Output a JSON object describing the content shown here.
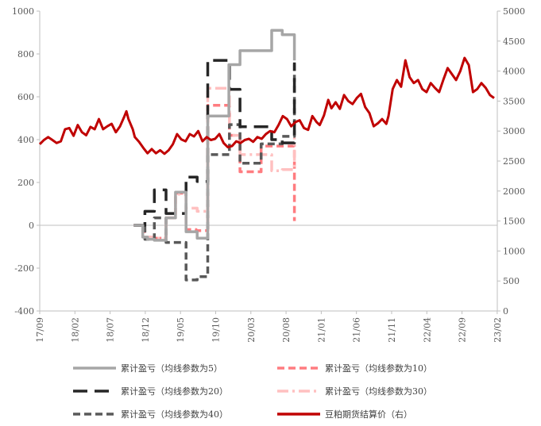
{
  "chart_data": {
    "type": "line",
    "x_ticks": [
      "17/09",
      "18/02",
      "18/07",
      "18/12",
      "19/05",
      "19/10",
      "20/03",
      "20/08",
      "21/01",
      "21/06",
      "21/11",
      "22/04",
      "22/09",
      "23/02"
    ],
    "y_left": {
      "min": -400,
      "max": 1000,
      "step": 200,
      "ticks": [
        "-400",
        "-200",
        "0",
        "200",
        "400",
        "600",
        "800",
        "1000"
      ]
    },
    "y_right": {
      "min": 0,
      "max": 5000,
      "step": 500,
      "ticks": [
        "0",
        "500",
        "1000",
        "1500",
        "2000",
        "2500",
        "3000",
        "3500",
        "4000",
        "4500",
        "5000"
      ]
    },
    "series": [
      {
        "name": "累计盈亏（均线参数为5）",
        "axis": "left",
        "color": "#a6a6a6",
        "style": "solid",
        "points": [
          [
            8.9,
            0
          ],
          [
            9.75,
            0
          ],
          [
            9.75,
            -55
          ],
          [
            10.2,
            -55
          ],
          [
            10.2,
            -65
          ],
          [
            10.85,
            -65
          ],
          [
            10.85,
            -70
          ],
          [
            11.95,
            -70
          ],
          [
            11.95,
            35
          ],
          [
            12.85,
            35
          ],
          [
            12.85,
            155
          ],
          [
            13.85,
            155
          ],
          [
            13.85,
            -30
          ],
          [
            14.9,
            -30
          ],
          [
            14.9,
            -60
          ],
          [
            15.9,
            -60
          ],
          [
            15.9,
            510
          ],
          [
            17.9,
            510
          ],
          [
            17.9,
            750
          ],
          [
            18.95,
            750
          ],
          [
            18.95,
            815
          ],
          [
            19.95,
            815
          ],
          [
            19.95,
            815
          ],
          [
            21.95,
            815
          ],
          [
            21.95,
            910
          ],
          [
            22.95,
            910
          ],
          [
            22.95,
            890
          ],
          [
            24.1,
            890
          ],
          [
            24.1,
            770
          ]
        ]
      },
      {
        "name": "累计盈亏（均线参数为10）",
        "axis": "left",
        "color": "#ff7c80",
        "style": "dash",
        "points": [
          [
            8.9,
            0
          ],
          [
            9.9,
            0
          ],
          [
            9.9,
            -55
          ],
          [
            10.85,
            -55
          ],
          [
            10.85,
            -60
          ],
          [
            11.95,
            -60
          ],
          [
            11.95,
            35
          ],
          [
            12.85,
            35
          ],
          [
            12.85,
            150
          ],
          [
            13.85,
            150
          ],
          [
            13.85,
            -20
          ],
          [
            14.8,
            -20
          ],
          [
            14.8,
            -25
          ],
          [
            15.9,
            -25
          ],
          [
            15.9,
            560
          ],
          [
            17.95,
            560
          ],
          [
            17.95,
            420
          ],
          [
            18.95,
            420
          ],
          [
            18.95,
            250
          ],
          [
            20.95,
            250
          ],
          [
            20.95,
            370
          ],
          [
            22.95,
            370
          ],
          [
            22.95,
            370
          ],
          [
            24.1,
            370
          ],
          [
            24.1,
            20
          ]
        ]
      },
      {
        "name": "累计盈亏（均线参数为20）",
        "axis": "left",
        "color": "#262626",
        "style": "longdash",
        "points": [
          [
            8.9,
            0
          ],
          [
            9.95,
            0
          ],
          [
            9.95,
            65
          ],
          [
            10.85,
            65
          ],
          [
            10.85,
            165
          ],
          [
            11.95,
            165
          ],
          [
            11.95,
            55
          ],
          [
            12.85,
            55
          ],
          [
            12.85,
            55
          ],
          [
            13.85,
            55
          ],
          [
            13.85,
            225
          ],
          [
            14.9,
            225
          ],
          [
            14.9,
            205
          ],
          [
            15.9,
            205
          ],
          [
            15.9,
            770
          ],
          [
            17.95,
            770
          ],
          [
            17.95,
            635
          ],
          [
            18.95,
            635
          ],
          [
            18.95,
            460
          ],
          [
            21.95,
            460
          ],
          [
            21.95,
            400
          ],
          [
            22.95,
            400
          ],
          [
            22.95,
            385
          ],
          [
            24.1,
            385
          ],
          [
            24.1,
            760
          ]
        ]
      },
      {
        "name": "累计盈亏（均线参数为30）",
        "axis": "left",
        "color": "#ffc0c0",
        "style": "dashdot",
        "points": [
          [
            8.9,
            0
          ],
          [
            9.95,
            0
          ],
          [
            9.95,
            -55
          ],
          [
            10.85,
            -55
          ],
          [
            10.85,
            -60
          ],
          [
            11.95,
            -60
          ],
          [
            11.95,
            35
          ],
          [
            12.85,
            35
          ],
          [
            12.85,
            145
          ],
          [
            13.85,
            145
          ],
          [
            13.85,
            80
          ],
          [
            14.9,
            80
          ],
          [
            14.9,
            65
          ],
          [
            15.9,
            65
          ],
          [
            15.9,
            640
          ],
          [
            17.95,
            640
          ],
          [
            17.95,
            420
          ],
          [
            18.95,
            420
          ],
          [
            18.95,
            330
          ],
          [
            21.95,
            330
          ],
          [
            21.95,
            255
          ],
          [
            22.95,
            255
          ],
          [
            22.95,
            260
          ],
          [
            24.1,
            260
          ],
          [
            24.1,
            410
          ]
        ]
      },
      {
        "name": "累计盈亏（均线参数为40）",
        "axis": "left",
        "color": "#595959",
        "style": "dash",
        "points": [
          [
            8.9,
            0
          ],
          [
            9.95,
            0
          ],
          [
            9.95,
            -65
          ],
          [
            10.85,
            -65
          ],
          [
            10.85,
            35
          ],
          [
            11.95,
            35
          ],
          [
            11.95,
            -80
          ],
          [
            12.85,
            -80
          ],
          [
            12.85,
            -80
          ],
          [
            13.85,
            -80
          ],
          [
            13.85,
            -255
          ],
          [
            14.9,
            -255
          ],
          [
            14.9,
            -240
          ],
          [
            15.9,
            -240
          ],
          [
            15.9,
            330
          ],
          [
            17.95,
            330
          ],
          [
            17.95,
            470
          ],
          [
            18.95,
            470
          ],
          [
            18.95,
            290
          ],
          [
            20.95,
            290
          ],
          [
            20.95,
            380
          ],
          [
            22.95,
            380
          ],
          [
            22.95,
            415
          ],
          [
            24.1,
            415
          ],
          [
            24.1,
            770
          ]
        ]
      },
      {
        "name": "豆粕期货结算价（右）",
        "axis": "right",
        "color": "#c00000",
        "style": "solid",
        "points": [
          [
            0,
            2780
          ],
          [
            0.4,
            2850
          ],
          [
            0.8,
            2900
          ],
          [
            1.2,
            2850
          ],
          [
            1.6,
            2800
          ],
          [
            2.0,
            2830
          ],
          [
            2.4,
            3030
          ],
          [
            2.8,
            3050
          ],
          [
            3.2,
            2920
          ],
          [
            3.6,
            3100
          ],
          [
            4.0,
            2980
          ],
          [
            4.4,
            2930
          ],
          [
            4.8,
            3070
          ],
          [
            5.2,
            3030
          ],
          [
            5.6,
            3200
          ],
          [
            6.0,
            3030
          ],
          [
            6.4,
            3080
          ],
          [
            6.8,
            3120
          ],
          [
            7.2,
            2980
          ],
          [
            7.6,
            3080
          ],
          [
            8.0,
            3240
          ],
          [
            8.2,
            3330
          ],
          [
            8.4,
            3200
          ],
          [
            8.8,
            3030
          ],
          [
            9.0,
            2900
          ],
          [
            9.4,
            2820
          ],
          [
            9.8,
            2720
          ],
          [
            10.2,
            2630
          ],
          [
            10.6,
            2700
          ],
          [
            11.0,
            2630
          ],
          [
            11.4,
            2680
          ],
          [
            11.8,
            2620
          ],
          [
            12.2,
            2680
          ],
          [
            12.6,
            2780
          ],
          [
            13.0,
            2950
          ],
          [
            13.4,
            2860
          ],
          [
            13.8,
            2830
          ],
          [
            14.2,
            2950
          ],
          [
            14.6,
            2910
          ],
          [
            15.0,
            3000
          ],
          [
            15.4,
            2830
          ],
          [
            15.8,
            2900
          ],
          [
            16.2,
            2850
          ],
          [
            16.6,
            2870
          ],
          [
            17.0,
            2950
          ],
          [
            17.4,
            2800
          ],
          [
            17.8,
            2730
          ],
          [
            18.2,
            2750
          ],
          [
            18.6,
            2830
          ],
          [
            19.0,
            2800
          ],
          [
            19.4,
            2850
          ],
          [
            19.8,
            2870
          ],
          [
            20.2,
            2820
          ],
          [
            20.6,
            2900
          ],
          [
            21.0,
            2870
          ],
          [
            21.4,
            2950
          ],
          [
            21.8,
            3000
          ],
          [
            22.2,
            2980
          ],
          [
            22.6,
            3100
          ],
          [
            23.0,
            3250
          ],
          [
            23.4,
            3200
          ],
          [
            23.8,
            3080
          ],
          [
            24.2,
            3150
          ],
          [
            24.6,
            3180
          ],
          [
            25.0,
            3050
          ],
          [
            25.4,
            3020
          ],
          [
            25.8,
            3250
          ],
          [
            26.2,
            3150
          ],
          [
            26.5,
            3100
          ],
          [
            26.9,
            3260
          ],
          [
            27.3,
            3520
          ],
          [
            27.6,
            3380
          ],
          [
            28.0,
            3480
          ],
          [
            28.4,
            3370
          ],
          [
            28.8,
            3600
          ],
          [
            29.2,
            3500
          ],
          [
            29.6,
            3450
          ],
          [
            30.0,
            3550
          ],
          [
            30.4,
            3620
          ],
          [
            30.8,
            3400
          ],
          [
            31.2,
            3300
          ],
          [
            31.6,
            3080
          ],
          [
            32.0,
            3130
          ],
          [
            32.4,
            3200
          ],
          [
            32.8,
            3120
          ],
          [
            33.0,
            3250
          ],
          [
            33.4,
            3700
          ],
          [
            33.8,
            3850
          ],
          [
            34.2,
            3740
          ],
          [
            34.6,
            4180
          ],
          [
            35.0,
            3900
          ],
          [
            35.4,
            3800
          ],
          [
            35.8,
            3850
          ],
          [
            36.2,
            3700
          ],
          [
            36.6,
            3650
          ],
          [
            37.0,
            3800
          ],
          [
            37.4,
            3720
          ],
          [
            37.8,
            3650
          ],
          [
            38.2,
            3860
          ],
          [
            38.6,
            4050
          ],
          [
            39.0,
            3950
          ],
          [
            39.4,
            3850
          ],
          [
            39.8,
            4000
          ],
          [
            40.2,
            4220
          ],
          [
            40.6,
            4100
          ],
          [
            41.0,
            3650
          ],
          [
            41.4,
            3700
          ],
          [
            41.8,
            3800
          ],
          [
            42.2,
            3720
          ],
          [
            42.6,
            3600
          ],
          [
            43.0,
            3550
          ]
        ]
      }
    ]
  }
}
